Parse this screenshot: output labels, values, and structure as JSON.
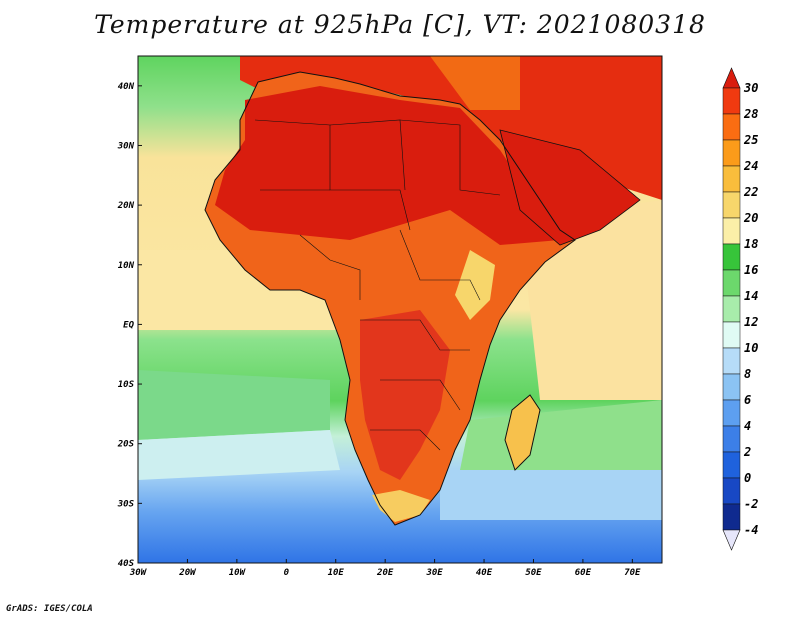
{
  "title": "Temperature at 925hPa [C], VT: 2021080318",
  "credit": "GrADS: IGES/COLA",
  "map": {
    "lat_labels": [
      {
        "lat": 40,
        "label": "40N"
      },
      {
        "lat": 30,
        "label": "30N"
      },
      {
        "lat": 20,
        "label": "20N"
      },
      {
        "lat": 10,
        "label": "10N"
      },
      {
        "lat": 0,
        "label": "EQ"
      },
      {
        "lat": -10,
        "label": "10S"
      },
      {
        "lat": -20,
        "label": "20S"
      },
      {
        "lat": -30,
        "label": "30S"
      },
      {
        "lat": -40,
        "label": "40S"
      }
    ],
    "lon_labels": [
      {
        "lon": -30,
        "label": "30W"
      },
      {
        "lon": -20,
        "label": "20W"
      },
      {
        "lon": -10,
        "label": "10W"
      },
      {
        "lon": 0,
        "label": "0"
      },
      {
        "lon": 10,
        "label": "10E"
      },
      {
        "lon": 20,
        "label": "20E"
      },
      {
        "lon": 30,
        "label": "30E"
      },
      {
        "lon": 40,
        "label": "40E"
      },
      {
        "lon": 50,
        "label": "50E"
      },
      {
        "lon": 60,
        "label": "60E"
      },
      {
        "lon": 70,
        "label": "70E"
      }
    ],
    "lon_range": [
      -30,
      76
    ],
    "lat_range": [
      -40,
      45
    ]
  },
  "colorbar": {
    "labels": [
      "30",
      "28",
      "25",
      "24",
      "22",
      "20",
      "18",
      "16",
      "14",
      "12",
      "10",
      "8",
      "6",
      "4",
      "2",
      "0",
      "-2",
      "-4"
    ],
    "colors": [
      "#d91d0e",
      "#f03a10",
      "#fa6d12",
      "#fb9b1a",
      "#f9bd3c",
      "#f7d66b",
      "#fbefa8",
      "#37c43a",
      "#6cd86c",
      "#a8ecab",
      "#e0fbf4",
      "#b6dcf8",
      "#8bc3f3",
      "#5d9ff0",
      "#3c7fe8",
      "#1f62dd",
      "#1848c4",
      "#0f2a8f",
      "#091a66"
    ]
  },
  "colors": {
    "africa_hot": "#d91d0e",
    "africa_warm": "#f47a1b",
    "ocean_trop": "#f9e39a",
    "ocean_green": "#5fd45f",
    "ocean_cold": "#4f8ff0"
  }
}
